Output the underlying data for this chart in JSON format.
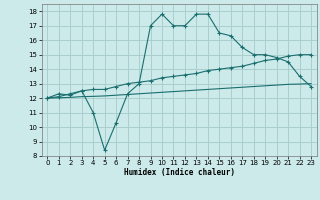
{
  "xlabel": "Humidex (Indice chaleur)",
  "bg_color": "#cceaea",
  "grid_color": "#aacece",
  "line_color": "#1a6e6e",
  "xlim": [
    -0.5,
    23.5
  ],
  "ylim": [
    8,
    18.5
  ],
  "xticks": [
    0,
    1,
    2,
    3,
    4,
    5,
    6,
    7,
    8,
    9,
    10,
    11,
    12,
    13,
    14,
    15,
    16,
    17,
    18,
    19,
    20,
    21,
    22,
    23
  ],
  "yticks": [
    8,
    9,
    10,
    11,
    12,
    13,
    14,
    15,
    16,
    17,
    18
  ],
  "line1_x": [
    0,
    1,
    2,
    3,
    4,
    5,
    6,
    7,
    8,
    9,
    10,
    11,
    12,
    13,
    14,
    15,
    16,
    17,
    18,
    19,
    20,
    21,
    22,
    23
  ],
  "line1_y": [
    12.0,
    12.3,
    12.2,
    12.5,
    11.0,
    8.4,
    10.3,
    12.3,
    13.0,
    17.0,
    17.8,
    17.0,
    17.0,
    17.8,
    17.8,
    16.5,
    16.3,
    15.5,
    15.0,
    15.0,
    14.8,
    14.5,
    13.5,
    12.8
  ],
  "line2_x": [
    0,
    1,
    2,
    3,
    4,
    5,
    6,
    7,
    8,
    9,
    10,
    11,
    12,
    13,
    14,
    15,
    16,
    17,
    18,
    19,
    20,
    21,
    22,
    23
  ],
  "line2_y": [
    12.0,
    12.1,
    12.3,
    12.5,
    12.6,
    12.6,
    12.8,
    13.0,
    13.1,
    13.2,
    13.4,
    13.5,
    13.6,
    13.7,
    13.9,
    14.0,
    14.1,
    14.2,
    14.4,
    14.6,
    14.7,
    14.9,
    15.0,
    15.0
  ],
  "line3_x": [
    0,
    1,
    2,
    3,
    4,
    5,
    6,
    7,
    8,
    9,
    10,
    11,
    12,
    13,
    14,
    15,
    16,
    17,
    18,
    19,
    20,
    21,
    22,
    23
  ],
  "line3_y": [
    12.0,
    12.02,
    12.05,
    12.1,
    12.12,
    12.15,
    12.2,
    12.25,
    12.3,
    12.35,
    12.4,
    12.45,
    12.5,
    12.55,
    12.6,
    12.65,
    12.7,
    12.75,
    12.8,
    12.85,
    12.9,
    12.95,
    12.97,
    13.0
  ]
}
